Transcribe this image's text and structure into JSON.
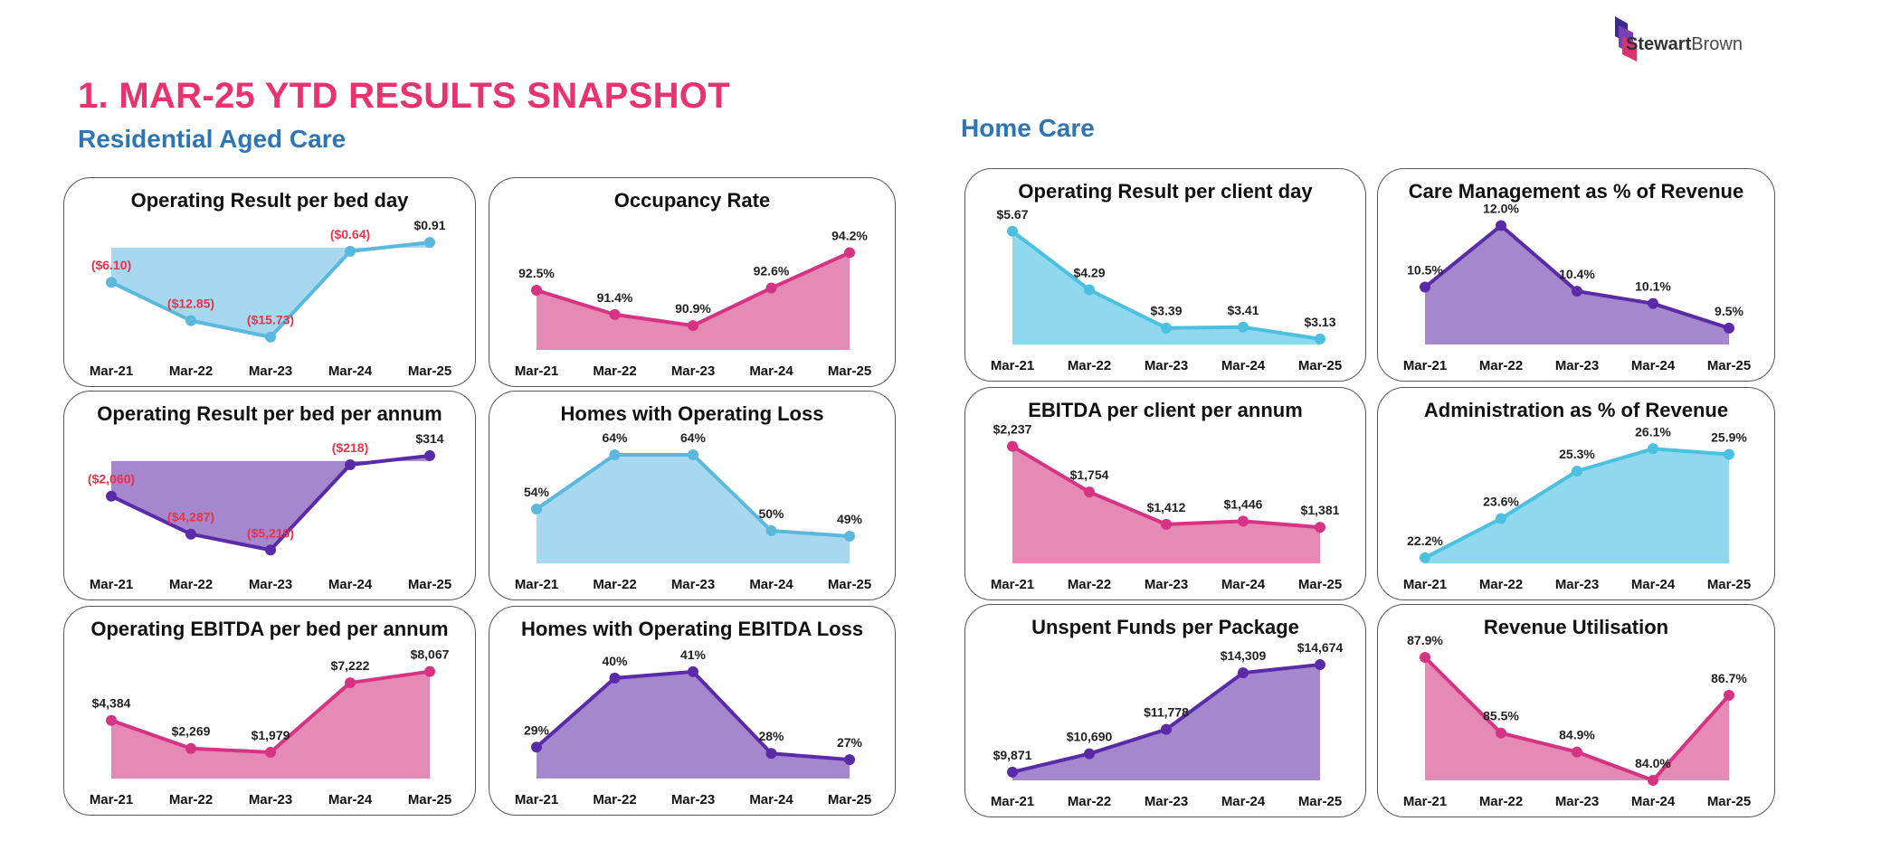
{
  "page": {
    "title": "1.  MAR-25 YTD RESULTS SNAPSHOT",
    "sections": {
      "rac": "Residential Aged Care",
      "hc": "Home Care"
    },
    "logo": {
      "text_bold": "Stewart",
      "text_light": "Brown"
    }
  },
  "chart_data": [
    {
      "id": "c1",
      "type": "area",
      "title": "Operating Result per bed day",
      "x": [
        "Mar-21",
        "Mar-22",
        "Mar-23",
        "Mar-24",
        "Mar-25"
      ],
      "values": [
        -6.1,
        -12.85,
        -15.73,
        -0.64,
        0.91
      ],
      "labels": [
        "($6.10)",
        "($12.85)",
        "($15.73)",
        "($0.64)",
        "$0.91"
      ],
      "ylim": [
        -18,
        3
      ],
      "colors": {
        "line": "#5ab8dc",
        "fill": "#a7d8ef",
        "neg_label": "#e8334a",
        "label": "#222"
      }
    },
    {
      "id": "c2",
      "type": "area",
      "title": "Occupancy Rate",
      "x": [
        "Mar-21",
        "Mar-22",
        "Mar-23",
        "Mar-24",
        "Mar-25"
      ],
      "values": [
        92.5,
        91.4,
        90.9,
        92.6,
        94.2
      ],
      "labels": [
        "92.5%",
        "91.4%",
        "90.9%",
        "92.6%",
        "94.2%"
      ],
      "ylim": [
        89.8,
        95.2
      ],
      "colors": {
        "line": "#d63384",
        "fill": "#e589b5",
        "label": "#222"
      }
    },
    {
      "id": "c3",
      "type": "area",
      "title": "Operating Result per bed per annum",
      "x": [
        "Mar-21",
        "Mar-22",
        "Mar-23",
        "Mar-24",
        "Mar-25"
      ],
      "values": [
        -2060,
        -4287,
        -5219,
        -218,
        314
      ],
      "labels": [
        "($2,060)",
        "($4,287)",
        "($5,219)",
        "($218)",
        "$314"
      ],
      "ylim": [
        -6000,
        1000
      ],
      "colors": {
        "line": "#5b2aa8",
        "fill": "#a487cc",
        "neg_label": "#e8334a",
        "label": "#222"
      }
    },
    {
      "id": "c4",
      "type": "area",
      "title": "Homes with Operating Loss",
      "x": [
        "Mar-21",
        "Mar-22",
        "Mar-23",
        "Mar-24",
        "Mar-25"
      ],
      "values": [
        54,
        64,
        64,
        50,
        49
      ],
      "labels": [
        "54%",
        "64%",
        "64%",
        "50%",
        "49%"
      ],
      "ylim": [
        44,
        66
      ],
      "colors": {
        "line": "#5ab8dc",
        "fill": "#a7d8ef",
        "label": "#222"
      }
    },
    {
      "id": "c5",
      "type": "area",
      "title": "Operating EBITDA per bed per annum",
      "x": [
        "Mar-21",
        "Mar-22",
        "Mar-23",
        "Mar-24",
        "Mar-25"
      ],
      "values": [
        4384,
        2269,
        1979,
        7222,
        8067
      ],
      "labels": [
        "$4,384",
        "$2,269",
        "$1,979",
        "$7,222",
        "$8,067"
      ],
      "ylim": [
        0,
        9000
      ],
      "colors": {
        "line": "#d63384",
        "fill": "#e589b5",
        "label": "#222"
      }
    },
    {
      "id": "c6",
      "type": "area",
      "title": "Homes with Operating EBITDA Loss",
      "x": [
        "Mar-21",
        "Mar-22",
        "Mar-23",
        "Mar-24",
        "Mar-25"
      ],
      "values": [
        29,
        40,
        41,
        28,
        27
      ],
      "labels": [
        "29%",
        "40%",
        "41%",
        "28%",
        "27%"
      ],
      "ylim": [
        24,
        43
      ],
      "colors": {
        "line": "#5b2aa8",
        "fill": "#a487cc",
        "label": "#222"
      }
    },
    {
      "id": "c7",
      "type": "area",
      "title": "Operating Result per client day",
      "x": [
        "Mar-21",
        "Mar-22",
        "Mar-23",
        "Mar-24",
        "Mar-25"
      ],
      "values": [
        5.67,
        4.29,
        3.39,
        3.41,
        3.13
      ],
      "labels": [
        "$5.67",
        "$4.29",
        "$3.39",
        "$3.41",
        "$3.13"
      ],
      "ylim": [
        3.0,
        5.9
      ],
      "colors": {
        "line": "#4cc0e0",
        "fill": "#8fd8ee",
        "label": "#222"
      }
    },
    {
      "id": "c8",
      "type": "area",
      "title": "Care Management as % of Revenue",
      "x": [
        "Mar-21",
        "Mar-22",
        "Mar-23",
        "Mar-24",
        "Mar-25"
      ],
      "values": [
        10.5,
        12.0,
        10.4,
        10.1,
        9.5
      ],
      "labels": [
        "10.5%",
        "12.0%",
        "10.4%",
        "10.1%",
        "9.5%"
      ],
      "ylim": [
        9.1,
        12.1
      ],
      "colors": {
        "line": "#5b2aa8",
        "fill": "#a487cc",
        "label": "#222"
      }
    },
    {
      "id": "c9",
      "type": "area",
      "title": "EBITDA per client per annum",
      "x": [
        "Mar-21",
        "Mar-22",
        "Mar-23",
        "Mar-24",
        "Mar-25"
      ],
      "values": [
        2237,
        1754,
        1412,
        1446,
        1381
      ],
      "labels": [
        "$2,237",
        "$1,754",
        "$1,412",
        "$1,446",
        "$1,381"
      ],
      "ylim": [
        1000,
        2300
      ],
      "colors": {
        "line": "#d63384",
        "fill": "#e589b5",
        "label": "#222"
      }
    },
    {
      "id": "c10",
      "type": "area",
      "title": "Administration as % of Revenue",
      "x": [
        "Mar-21",
        "Mar-22",
        "Mar-23",
        "Mar-24",
        "Mar-25"
      ],
      "values": [
        22.2,
        23.6,
        25.3,
        26.1,
        25.9
      ],
      "labels": [
        "22.2%",
        "23.6%",
        "25.3%",
        "26.1%",
        "25.9%"
      ],
      "ylim": [
        22.0,
        26.4
      ],
      "colors": {
        "line": "#4cc0e0",
        "fill": "#8fd8ee",
        "label": "#222"
      }
    },
    {
      "id": "c11",
      "type": "area",
      "title": "Unspent Funds per Package",
      "x": [
        "Mar-21",
        "Mar-22",
        "Mar-23",
        "Mar-24",
        "Mar-25"
      ],
      "values": [
        9871,
        10690,
        11778,
        14309,
        14674
      ],
      "labels": [
        "$9,871",
        "$10,690",
        "$11,778",
        "$14,309",
        "$14,674"
      ],
      "ylim": [
        9500,
        15000
      ],
      "colors": {
        "line": "#5b2aa8",
        "fill": "#a487cc",
        "label": "#222"
      }
    },
    {
      "id": "c12",
      "type": "area",
      "title": "Revenue Utilisation",
      "x": [
        "Mar-21",
        "Mar-22",
        "Mar-23",
        "Mar-24",
        "Mar-25"
      ],
      "values": [
        87.9,
        85.5,
        84.9,
        84.0,
        86.7
      ],
      "labels": [
        "87.9%",
        "85.5%",
        "84.9%",
        "84.0%",
        "86.7%"
      ],
      "ylim": [
        84.0,
        87.9
      ],
      "colors": {
        "line": "#d63384",
        "fill": "#e589b5",
        "label": "#222"
      }
    }
  ]
}
